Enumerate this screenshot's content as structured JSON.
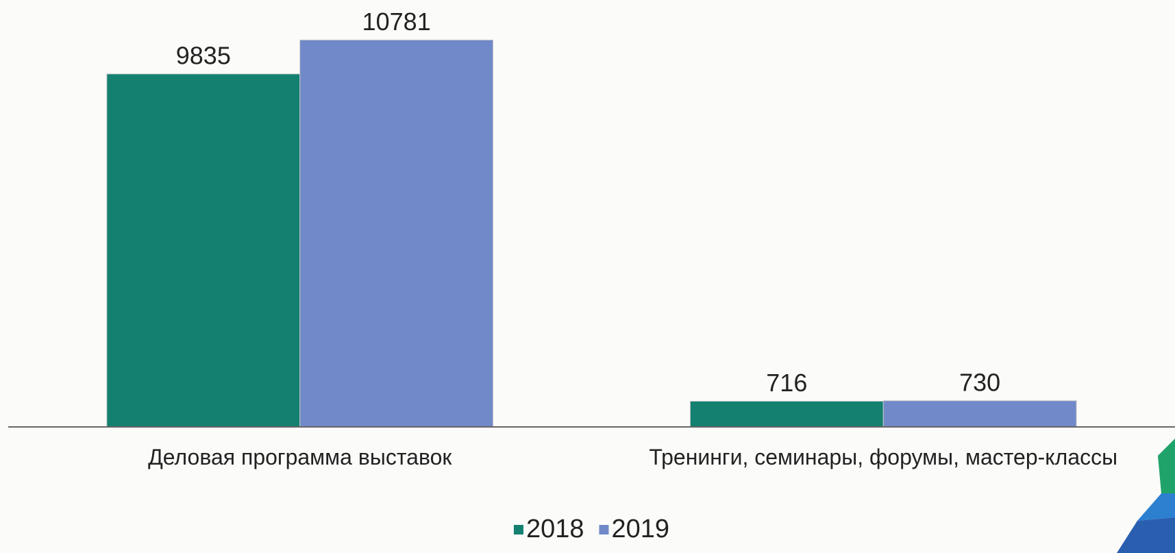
{
  "chart_data": {
    "type": "bar",
    "categories": [
      "Деловая программа выставок",
      "Тренинги, семинары, форумы, мастер-классы"
    ],
    "series": [
      {
        "name": "2018",
        "color": "#138070",
        "values": [
          9835,
          716
        ]
      },
      {
        "name": "2019",
        "color": "#7189c8",
        "values": [
          10781,
          730
        ]
      }
    ],
    "ylim": [
      0,
      11800
    ],
    "legend": "bottom"
  }
}
